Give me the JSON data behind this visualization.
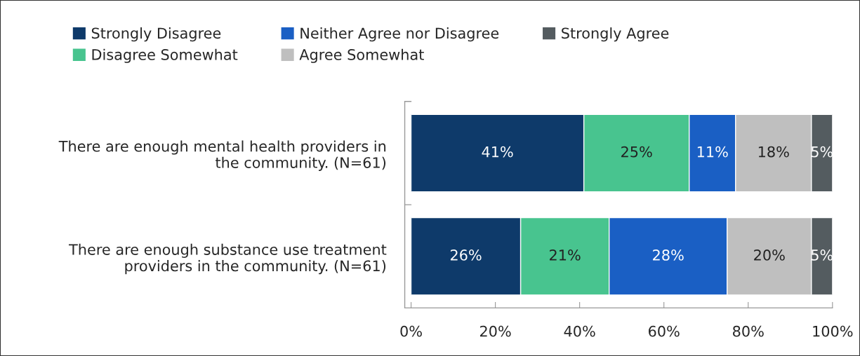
{
  "chart_data": {
    "type": "bar",
    "orientation": "horizontal",
    "stacked": true,
    "legend": "top",
    "categories": [
      "There are enough mental health providers in\nthe community. (N=61)",
      "There are enough substance use treatment\nproviders in the community. (N=61)"
    ],
    "series": [
      {
        "name": "Strongly Disagree",
        "color": "#0e3a6a",
        "values": [
          41,
          26
        ],
        "value_labels": [
          "41%",
          "26%"
        ]
      },
      {
        "name": "Disagree Somewhat",
        "color": "#48c48f",
        "values": [
          25,
          21
        ],
        "value_labels": [
          "25%",
          "21%"
        ]
      },
      {
        "name": "Neither Agree nor Disagree",
        "color": "#1a5fc4",
        "values": [
          11,
          28
        ],
        "value_labels": [
          "11%",
          "28%"
        ]
      },
      {
        "name": "Agree Somewhat",
        "color": "#bfbfbf",
        "values": [
          18,
          20
        ],
        "value_labels": [
          "18%",
          "20%"
        ]
      },
      {
        "name": "Strongly Agree",
        "color": "#545c60",
        "values": [
          5,
          5
        ],
        "value_labels": [
          "5%",
          "5%"
        ]
      }
    ],
    "xlim": [
      0,
      100
    ],
    "xticks": [
      {
        "value": 0,
        "label": "0%"
      },
      {
        "value": 20,
        "label": "20%"
      },
      {
        "value": 40,
        "label": "40%"
      },
      {
        "value": 60,
        "label": "60%"
      },
      {
        "value": 80,
        "label": "80%"
      },
      {
        "value": 100,
        "label": "100%"
      }
    ],
    "grid": false
  }
}
